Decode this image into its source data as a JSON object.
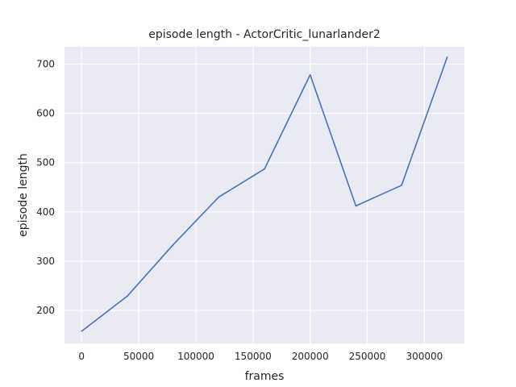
{
  "chart_data": {
    "type": "line",
    "title": "episode length - ActorCritic_lunarlander2",
    "xlabel": "frames",
    "ylabel": "episode length",
    "xlim": [
      -15000,
      335000
    ],
    "ylim": [
      133,
      735
    ],
    "x_ticks": [
      0,
      50000,
      100000,
      150000,
      200000,
      250000,
      300000
    ],
    "x_tick_labels": [
      "0",
      "50000",
      "100000",
      "150000",
      "200000",
      "250000",
      "300000"
    ],
    "y_ticks": [
      200,
      300,
      400,
      500,
      600,
      700
    ],
    "y_tick_labels": [
      "200",
      "300",
      "400",
      "500",
      "600",
      "700"
    ],
    "grid": true,
    "background": "#eaeaf2",
    "series": [
      {
        "color": "#4c72b0",
        "x": [
          0,
          40000,
          80000,
          120000,
          160000,
          200000,
          240000,
          280000,
          320000
        ],
        "y": [
          158,
          229,
          333,
          430,
          487,
          678,
          412,
          454,
          714
        ]
      }
    ]
  }
}
